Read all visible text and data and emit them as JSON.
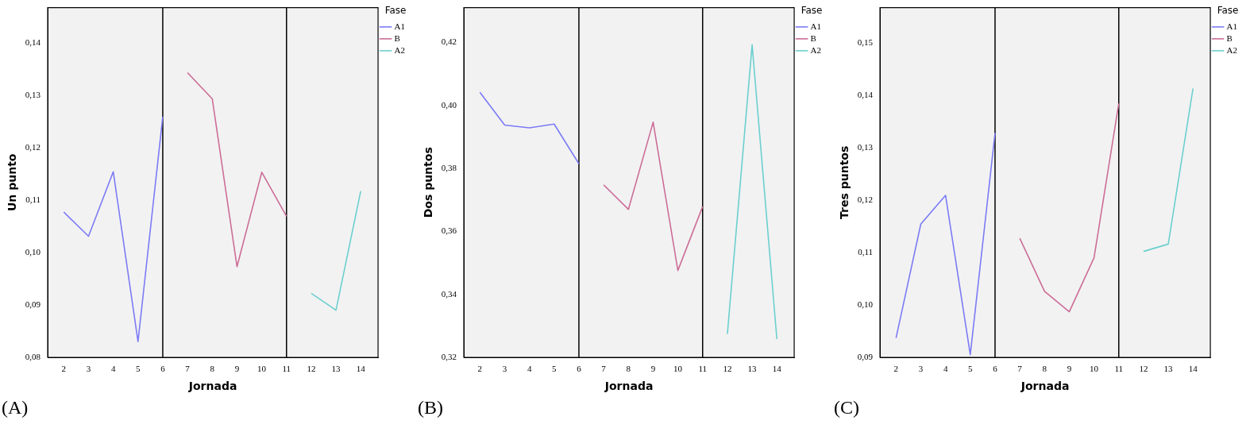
{
  "chart_data": [
    {
      "type": "line",
      "xlabel": "Jornada",
      "ylabel": "Un punto",
      "legend_title": "Fase",
      "legend": "top right",
      "grid": false,
      "marker": "none",
      "line_style": "solid",
      "annotations": [
        "(A)"
      ],
      "xlim": [
        1.35,
        14.7
      ],
      "xticks": [
        2,
        3,
        4,
        5,
        6,
        7,
        8,
        9,
        10,
        11,
        12,
        13,
        14
      ],
      "ylim": [
        0.08,
        0.1467
      ],
      "yticks": [
        {
          "value": 0.08,
          "label": "0,08"
        },
        {
          "value": 0.09,
          "label": "0,09"
        },
        {
          "value": 0.1,
          "label": "0,10"
        },
        {
          "value": 0.11,
          "label": "0,11"
        },
        {
          "value": 0.12,
          "label": "0,12"
        },
        {
          "value": 0.13,
          "label": "0,13"
        },
        {
          "value": 0.14,
          "label": "0,14"
        }
      ],
      "ref_lines": [
        {
          "axis": "x",
          "value": 6,
          "color": "#000000"
        },
        {
          "axis": "x",
          "value": 11,
          "color": "#000000"
        }
      ],
      "series": [
        {
          "name": "A1",
          "color": "#7b7bf5",
          "x": [
            2,
            3,
            4,
            5,
            6
          ],
          "values": [
            0.1077,
            0.1031,
            0.1154,
            0.083,
            0.1259
          ]
        },
        {
          "name": "B",
          "color": "#cc6d98",
          "x": [
            7,
            8,
            9,
            10,
            11
          ],
          "values": [
            0.1343,
            0.1293,
            0.0973,
            0.1153,
            0.1069
          ]
        },
        {
          "name": "A2",
          "color": "#6ccfcf",
          "x": [
            12,
            13,
            14
          ],
          "values": [
            0.0922,
            0.089,
            0.1117
          ]
        }
      ]
    },
    {
      "type": "line",
      "xlabel": "Jornada",
      "ylabel": "Dos puntos",
      "legend_title": "Fase",
      "legend": "top right",
      "grid": false,
      "marker": "none",
      "line_style": "solid",
      "annotations": [
        "(B)"
      ],
      "xlim": [
        1.35,
        14.7
      ],
      "xticks": [
        2,
        3,
        4,
        5,
        6,
        7,
        8,
        9,
        10,
        11,
        12,
        13,
        14
      ],
      "ylim": [
        0.32,
        0.4311
      ],
      "yticks": [
        {
          "value": 0.32,
          "label": "0,32"
        },
        {
          "value": 0.34,
          "label": "0,34"
        },
        {
          "value": 0.36,
          "label": "0,36"
        },
        {
          "value": 0.38,
          "label": "0,38"
        },
        {
          "value": 0.4,
          "label": "0,40"
        },
        {
          "value": 0.42,
          "label": "0,42"
        }
      ],
      "ref_lines": [
        {
          "axis": "x",
          "value": 6,
          "color": "#000000"
        },
        {
          "axis": "x",
          "value": 11,
          "color": "#000000"
        }
      ],
      "series": [
        {
          "name": "A1",
          "color": "#7b7bf5",
          "x": [
            2,
            3,
            4,
            5,
            6
          ],
          "values": [
            0.4042,
            0.3938,
            0.3929,
            0.3941,
            0.3815
          ]
        },
        {
          "name": "B",
          "color": "#cc6d98",
          "x": [
            7,
            8,
            9,
            10,
            11
          ],
          "values": [
            0.3748,
            0.367,
            0.3947,
            0.3476,
            0.3679
          ]
        },
        {
          "name": "A2",
          "color": "#6ccfcf",
          "x": [
            12,
            13,
            14
          ],
          "values": [
            0.3274,
            0.4193,
            0.3258
          ]
        }
      ]
    },
    {
      "type": "line",
      "xlabel": "Jornada",
      "ylabel": "Tres puntos",
      "legend_title": "Fase",
      "legend": "top right",
      "grid": false,
      "marker": "none",
      "line_style": "solid",
      "annotations": [
        "(C)"
      ],
      "xlim": [
        1.35,
        14.7
      ],
      "xticks": [
        2,
        3,
        4,
        5,
        6,
        7,
        8,
        9,
        10,
        11,
        12,
        13,
        14
      ],
      "ylim": [
        0.09,
        0.1567
      ],
      "yticks": [
        {
          "value": 0.09,
          "label": "0,09"
        },
        {
          "value": 0.1,
          "label": "0,10"
        },
        {
          "value": 0.11,
          "label": "0,11"
        },
        {
          "value": 0.12,
          "label": "0,12"
        },
        {
          "value": 0.13,
          "label": "0,13"
        },
        {
          "value": 0.14,
          "label": "0,14"
        },
        {
          "value": 0.15,
          "label": "0,15"
        }
      ],
      "ref_lines": [
        {
          "axis": "x",
          "value": 6,
          "color": "#000000"
        },
        {
          "axis": "x",
          "value": 11,
          "color": "#000000"
        }
      ],
      "series": [
        {
          "name": "A1",
          "color": "#7b7bf5",
          "x": [
            2,
            3,
            4,
            5,
            6
          ],
          "values": [
            0.0937,
            0.1154,
            0.1209,
            0.0905,
            0.1328
          ]
        },
        {
          "name": "B",
          "color": "#cc6d98",
          "x": [
            7,
            8,
            9,
            10,
            11
          ],
          "values": [
            0.1127,
            0.1026,
            0.0987,
            0.109,
            0.1384
          ]
        },
        {
          "name": "A2",
          "color": "#6ccfcf",
          "x": [
            12,
            13,
            14
          ],
          "values": [
            0.1102,
            0.1116,
            0.1413
          ]
        }
      ]
    }
  ]
}
